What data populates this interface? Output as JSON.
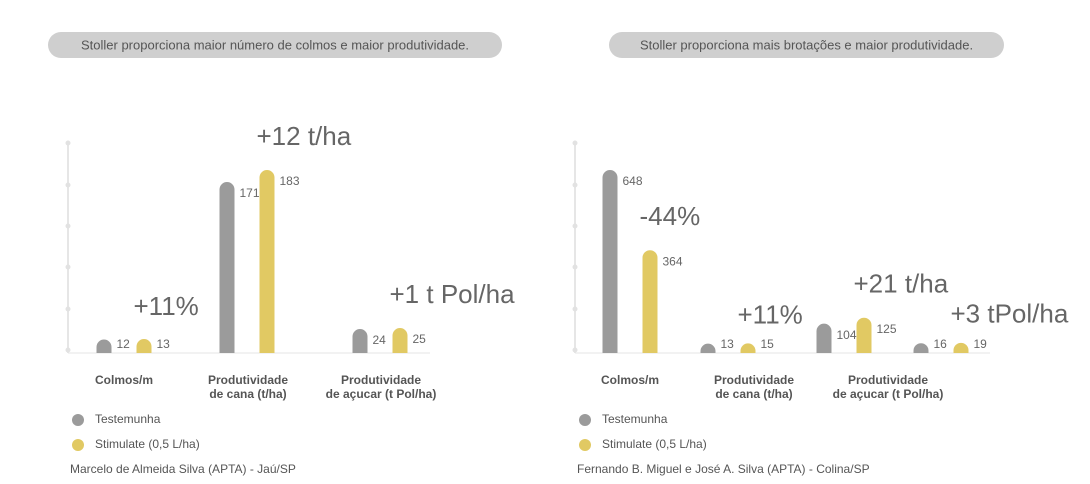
{
  "chart_data": [
    {
      "type": "bar",
      "title": "Stoller proporciona maior número de colmos e maior produtividade.",
      "categories": [
        "Colmos/m",
        "Produtividade\nde cana (t/ha)",
        "Produtividade\nde açucar (t Pol/ha)"
      ],
      "series": [
        {
          "name": "Testemunha",
          "color": "#9b9b9b",
          "values": [
            12,
            171,
            24
          ]
        },
        {
          "name": "Stimulate (0,5 L/ha)",
          "color": "#e1c963",
          "values": [
            13,
            183,
            25
          ]
        }
      ],
      "annotations": [
        "+11%",
        "+12 t/ha",
        "+1 t Pol/ha"
      ],
      "source": "Marcelo de Almeida Silva (APTA) - Jaú/SP"
    },
    {
      "type": "bar",
      "title": "Stoller proporciona mais brotações e maior produtividade.",
      "categories": [
        "Colmos/m",
        "Produtividade\nde cana (t/ha)",
        "Produtividade\nde açucar (t Pol/ha)",
        null
      ],
      "series": [
        {
          "name": "Testemunha",
          "color": "#9b9b9b",
          "values": [
            648,
            13,
            104,
            16
          ]
        },
        {
          "name": "Stimulate (0,5 L/ha)",
          "color": "#e1c963",
          "values": [
            364,
            15,
            125,
            19
          ]
        }
      ],
      "annotations": [
        "-44%",
        "+11%",
        "+21 t/ha",
        "+3 tPol/ha"
      ],
      "source": "Fernando B. Miguel e José A. Silva (APTA) - Colina/SP"
    }
  ]
}
